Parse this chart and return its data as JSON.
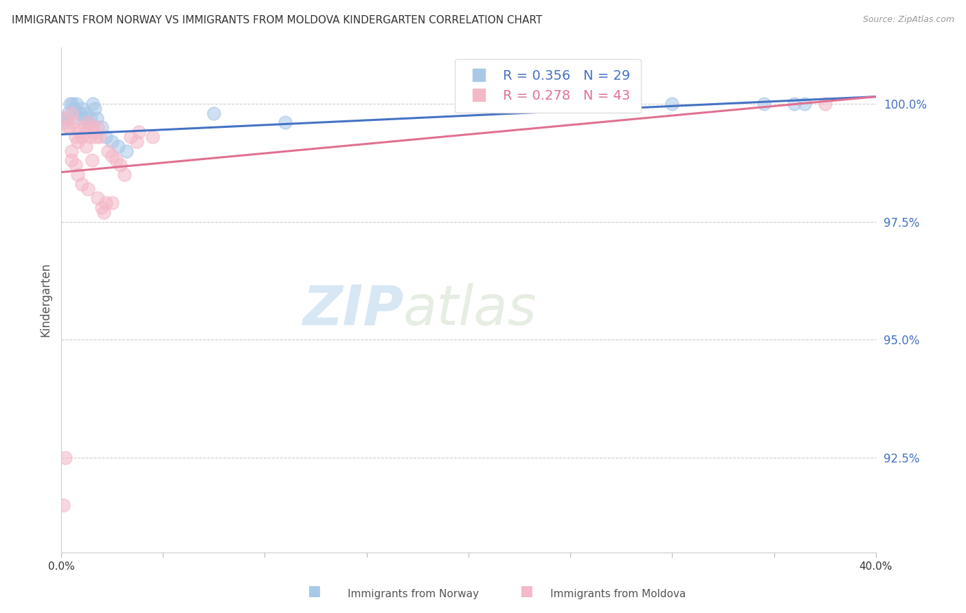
{
  "title": "IMMIGRANTS FROM NORWAY VS IMMIGRANTS FROM MOLDOVA KINDERGARTEN CORRELATION CHART",
  "source": "Source: ZipAtlas.com",
  "ylabel": "Kindergarten",
  "yticks": [
    92.5,
    95.0,
    97.5,
    100.0
  ],
  "ytick_labels": [
    "92.5%",
    "95.0%",
    "97.5%",
    "100.0%"
  ],
  "xlim": [
    0.0,
    40.0
  ],
  "ylim": [
    90.5,
    101.2
  ],
  "legend_norway_r": "R = 0.356",
  "legend_norway_n": "N = 29",
  "legend_moldova_r": "R = 0.278",
  "legend_moldova_n": "N = 43",
  "norway_color": "#a8c8e8",
  "moldova_color": "#f4b8c8",
  "norway_line_color": "#4472c4",
  "moldova_line_color": "#e07090",
  "norway_scatter_x": [
    0.15,
    0.25,
    0.35,
    0.45,
    0.55,
    0.65,
    0.75,
    0.85,
    0.95,
    1.05,
    1.15,
    1.25,
    1.35,
    1.45,
    1.55,
    1.65,
    1.75,
    2.0,
    2.2,
    2.5,
    2.8,
    3.2,
    7.5,
    21.0,
    30.0,
    34.5,
    36.0,
    36.5,
    11.0
  ],
  "norway_scatter_y": [
    99.6,
    99.7,
    99.8,
    100.0,
    100.0,
    99.9,
    100.0,
    99.7,
    99.8,
    99.9,
    99.7,
    99.8,
    99.6,
    99.7,
    100.0,
    99.9,
    99.7,
    99.5,
    99.3,
    99.2,
    99.1,
    99.0,
    99.8,
    100.0,
    100.0,
    100.0,
    100.0,
    100.0,
    99.6
  ],
  "moldova_scatter_x": [
    0.1,
    0.15,
    0.2,
    0.3,
    0.4,
    0.5,
    0.6,
    0.7,
    0.8,
    0.9,
    1.0,
    1.1,
    1.2,
    1.3,
    1.4,
    1.5,
    1.6,
    1.7,
    1.8,
    1.9,
    2.0,
    2.1,
    2.2,
    2.3,
    2.5,
    2.7,
    2.9,
    3.1,
    3.4,
    3.7,
    1.3,
    1.8,
    2.5,
    3.8,
    4.5,
    0.5,
    0.8,
    1.0,
    0.5,
    0.7,
    1.2,
    1.5,
    37.5
  ],
  "moldova_scatter_y": [
    91.5,
    99.7,
    92.5,
    99.5,
    99.5,
    99.8,
    99.6,
    99.3,
    99.2,
    99.4,
    99.3,
    99.5,
    99.4,
    99.6,
    99.3,
    99.5,
    99.4,
    99.3,
    99.5,
    99.3,
    97.8,
    97.7,
    97.9,
    99.0,
    98.9,
    98.8,
    98.7,
    98.5,
    99.3,
    99.2,
    98.2,
    98.0,
    97.9,
    99.4,
    99.3,
    98.8,
    98.5,
    98.3,
    99.0,
    98.7,
    99.1,
    98.8,
    100.0
  ],
  "norway_line_x0": 0.0,
  "norway_line_y0": 99.35,
  "norway_line_x1": 40.0,
  "norway_line_y1": 100.15,
  "moldova_line_x0": 0.0,
  "moldova_line_y0": 98.55,
  "moldova_line_x1": 40.0,
  "moldova_line_y1": 100.15,
  "watermark_zip": "ZIP",
  "watermark_atlas": "atlas",
  "background_color": "#ffffff",
  "grid_color": "#cccccc"
}
